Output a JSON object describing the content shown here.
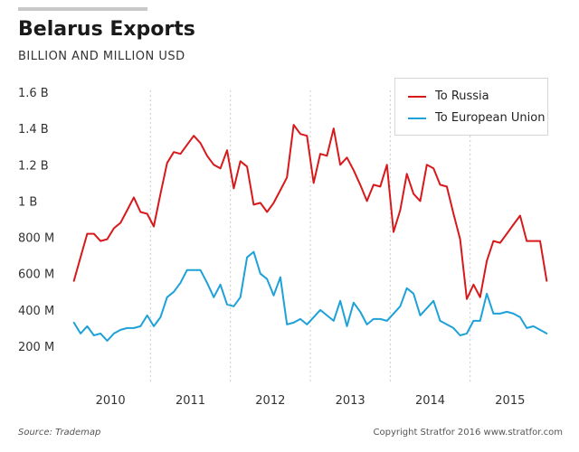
{
  "header": {
    "title": "Belarus Exports",
    "subtitle": "BILLION AND MILLION USD"
  },
  "footer": {
    "source": "Source: Trademap",
    "credit": "Copyright Stratfor 2016  www.stratfor.com"
  },
  "colors": {
    "russia": "#d7191c",
    "eu": "#1da1d8",
    "grid": "#cccccc"
  },
  "chart_data": {
    "type": "line",
    "title": "Belarus Exports",
    "subtitle": "BILLION AND MILLION USD",
    "xlabel": "",
    "ylabel": "",
    "ylim": [
      0,
      1.6
    ],
    "yticks": [
      {
        "value": 1.6,
        "label": "1.6 B"
      },
      {
        "value": 1.4,
        "label": "1.4 B"
      },
      {
        "value": 1.2,
        "label": "1.2 B"
      },
      {
        "value": 1.0,
        "label": "1 B"
      },
      {
        "value": 0.8,
        "label": "800 M"
      },
      {
        "value": 0.6,
        "label": "600 M"
      },
      {
        "value": 0.4,
        "label": "400 M"
      },
      {
        "value": 0.2,
        "label": "200 M"
      }
    ],
    "xrange": [
      2009.9583,
      2015.9583
    ],
    "xticks": [
      "2010",
      "2011",
      "2012",
      "2013",
      "2014",
      "2015"
    ],
    "grid": "vertical dotted year separators",
    "legend": "top-right",
    "x": [
      "2010-01",
      "2010-02",
      "2010-03",
      "2010-04",
      "2010-05",
      "2010-06",
      "2010-07",
      "2010-08",
      "2010-09",
      "2010-10",
      "2010-11",
      "2010-12",
      "2011-01",
      "2011-02",
      "2011-03",
      "2011-04",
      "2011-05",
      "2011-06",
      "2011-07",
      "2011-08",
      "2011-09",
      "2011-10",
      "2011-11",
      "2011-12",
      "2012-01",
      "2012-02",
      "2012-03",
      "2012-04",
      "2012-05",
      "2012-06",
      "2012-07",
      "2012-08",
      "2012-09",
      "2012-10",
      "2012-11",
      "2012-12",
      "2013-01",
      "2013-02",
      "2013-03",
      "2013-04",
      "2013-05",
      "2013-06",
      "2013-07",
      "2013-08",
      "2013-09",
      "2013-10",
      "2013-11",
      "2013-12",
      "2014-01",
      "2014-02",
      "2014-03",
      "2014-04",
      "2014-05",
      "2014-06",
      "2014-07",
      "2014-08",
      "2014-09",
      "2014-10",
      "2014-11",
      "2014-12",
      "2015-01",
      "2015-02",
      "2015-03",
      "2015-04",
      "2015-05",
      "2015-06",
      "2015-07",
      "2015-08",
      "2015-09",
      "2015-10",
      "2015-11",
      "2015-12"
    ],
    "series": [
      {
        "name": "To Russia",
        "values": [
          0.56,
          0.69,
          0.82,
          0.82,
          0.78,
          0.79,
          0.85,
          0.88,
          0.95,
          1.02,
          0.94,
          0.93,
          0.86,
          1.04,
          1.21,
          1.27,
          1.26,
          1.31,
          1.36,
          1.32,
          1.25,
          1.2,
          1.18,
          1.28,
          1.07,
          1.22,
          1.19,
          0.98,
          0.99,
          0.94,
          0.99,
          1.06,
          1.13,
          1.42,
          1.37,
          1.36,
          1.1,
          1.26,
          1.25,
          1.4,
          1.2,
          1.24,
          1.17,
          1.09,
          1.0,
          1.09,
          1.08,
          1.2,
          0.83,
          0.95,
          1.15,
          1.04,
          1.0,
          1.2,
          1.18,
          1.09,
          1.08,
          0.93,
          0.79,
          0.46,
          0.54,
          0.47,
          0.67,
          0.78,
          0.77,
          0.82,
          0.87,
          0.92,
          0.78,
          0.78,
          0.78,
          0.56
        ]
      },
      {
        "name": "To European Union",
        "values": [
          0.33,
          0.27,
          0.31,
          0.26,
          0.27,
          0.23,
          0.27,
          0.29,
          0.3,
          0.3,
          0.31,
          0.37,
          0.31,
          0.36,
          0.47,
          0.5,
          0.55,
          0.62,
          0.62,
          0.62,
          0.55,
          0.47,
          0.54,
          0.43,
          0.42,
          0.47,
          0.69,
          0.72,
          0.6,
          0.57,
          0.48,
          0.58,
          0.32,
          0.33,
          0.35,
          0.32,
          0.36,
          0.4,
          0.37,
          0.34,
          0.45,
          0.31,
          0.44,
          0.39,
          0.32,
          0.35,
          0.35,
          0.34,
          0.38,
          0.42,
          0.52,
          0.49,
          0.37,
          0.41,
          0.45,
          0.34,
          0.32,
          0.3,
          0.26,
          0.27,
          0.34,
          0.34,
          0.49,
          0.38,
          0.38,
          0.39,
          0.38,
          0.36,
          0.3,
          0.31,
          0.29,
          0.27
        ]
      }
    ]
  }
}
